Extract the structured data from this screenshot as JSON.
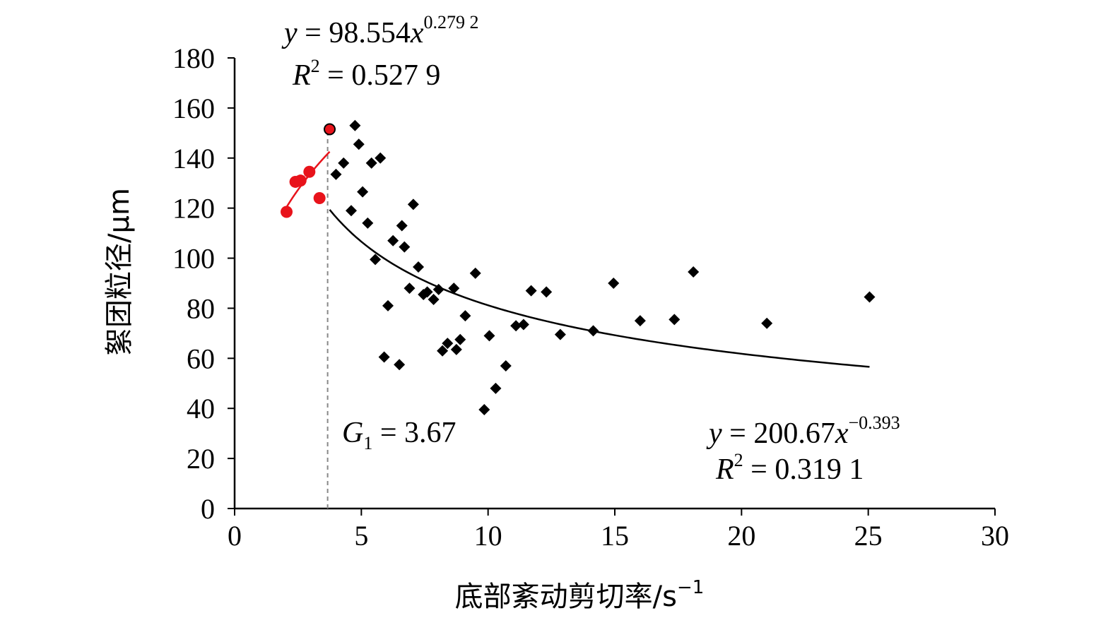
{
  "chart_data": {
    "type": "scatter",
    "xlabel": "底部紊动剪切率/s",
    "xlabel_sup": "−1",
    "ylabel": "絮团粒径/μm",
    "xlim": [
      0,
      30
    ],
    "ylim": [
      0,
      180
    ],
    "xticks": [
      0,
      5,
      10,
      15,
      20,
      25,
      30
    ],
    "yticks": [
      0,
      20,
      40,
      60,
      80,
      100,
      120,
      140,
      160,
      180
    ],
    "grid": false,
    "colors": {
      "left": "#e8131b",
      "right": "#000000",
      "threshold": "#888888"
    },
    "left_series": {
      "marker": "circle",
      "points": [
        [
          2.05,
          118.5
        ],
        [
          2.4,
          130.5
        ],
        [
          2.6,
          131.0
        ],
        [
          2.95,
          134.5
        ],
        [
          3.35,
          124.0
        ]
      ],
      "highlight_point": [
        3.75,
        151.5
      ],
      "fit": {
        "a": 98.554,
        "b": 0.2792,
        "x_range": [
          2.05,
          3.75
        ]
      },
      "equation": {
        "y": "y",
        "eq_prefix": " = 98.554",
        "x": "x",
        "exp": "0.279 2"
      },
      "r2": {
        "r": "R",
        "sup": "2",
        "rest": " = 0.527 9"
      }
    },
    "right_series": {
      "marker": "diamond",
      "points": [
        [
          4.0,
          133.5
        ],
        [
          4.3,
          138.0
        ],
        [
          4.6,
          119.0
        ],
        [
          4.75,
          153.0
        ],
        [
          4.9,
          145.5
        ],
        [
          5.05,
          126.5
        ],
        [
          5.25,
          114.0
        ],
        [
          5.4,
          138.0
        ],
        [
          5.55,
          99.5
        ],
        [
          5.75,
          140.0
        ],
        [
          5.9,
          60.5
        ],
        [
          6.05,
          81.0
        ],
        [
          6.25,
          107.0
        ],
        [
          6.5,
          57.5
        ],
        [
          6.6,
          113.0
        ],
        [
          6.7,
          104.5
        ],
        [
          6.9,
          88.0
        ],
        [
          7.05,
          121.5
        ],
        [
          7.25,
          96.5
        ],
        [
          7.45,
          85.5
        ],
        [
          7.6,
          86.5
        ],
        [
          7.85,
          83.5
        ],
        [
          8.05,
          87.5
        ],
        [
          8.2,
          63.0
        ],
        [
          8.4,
          66.0
        ],
        [
          8.65,
          88.0
        ],
        [
          8.75,
          63.5
        ],
        [
          8.9,
          67.5
        ],
        [
          9.1,
          77.0
        ],
        [
          9.5,
          94.0
        ],
        [
          9.85,
          39.5
        ],
        [
          10.05,
          69.0
        ],
        [
          10.3,
          48.0
        ],
        [
          10.7,
          57.0
        ],
        [
          11.1,
          73.0
        ],
        [
          11.4,
          73.5
        ],
        [
          11.7,
          87.0
        ],
        [
          12.3,
          86.5
        ],
        [
          12.85,
          69.5
        ],
        [
          14.15,
          71.0
        ],
        [
          14.95,
          90.0
        ],
        [
          16.0,
          75.0
        ],
        [
          17.35,
          75.5
        ],
        [
          18.1,
          94.5
        ],
        [
          21.0,
          74.0
        ],
        [
          25.05,
          84.5
        ]
      ],
      "fit": {
        "a": 200.67,
        "b": -0.393,
        "x_range": [
          3.75,
          25.05
        ]
      },
      "equation": {
        "y": "y",
        "eq_prefix": " = 200.67",
        "x": "x",
        "exp": "−0.393"
      },
      "r2": {
        "r": "R",
        "sup": "2",
        "rest": " = 0.319 1"
      }
    },
    "threshold": {
      "x": 3.67,
      "label_g": "G",
      "label_sub": "1",
      "label_rest": " = 3.67"
    }
  }
}
